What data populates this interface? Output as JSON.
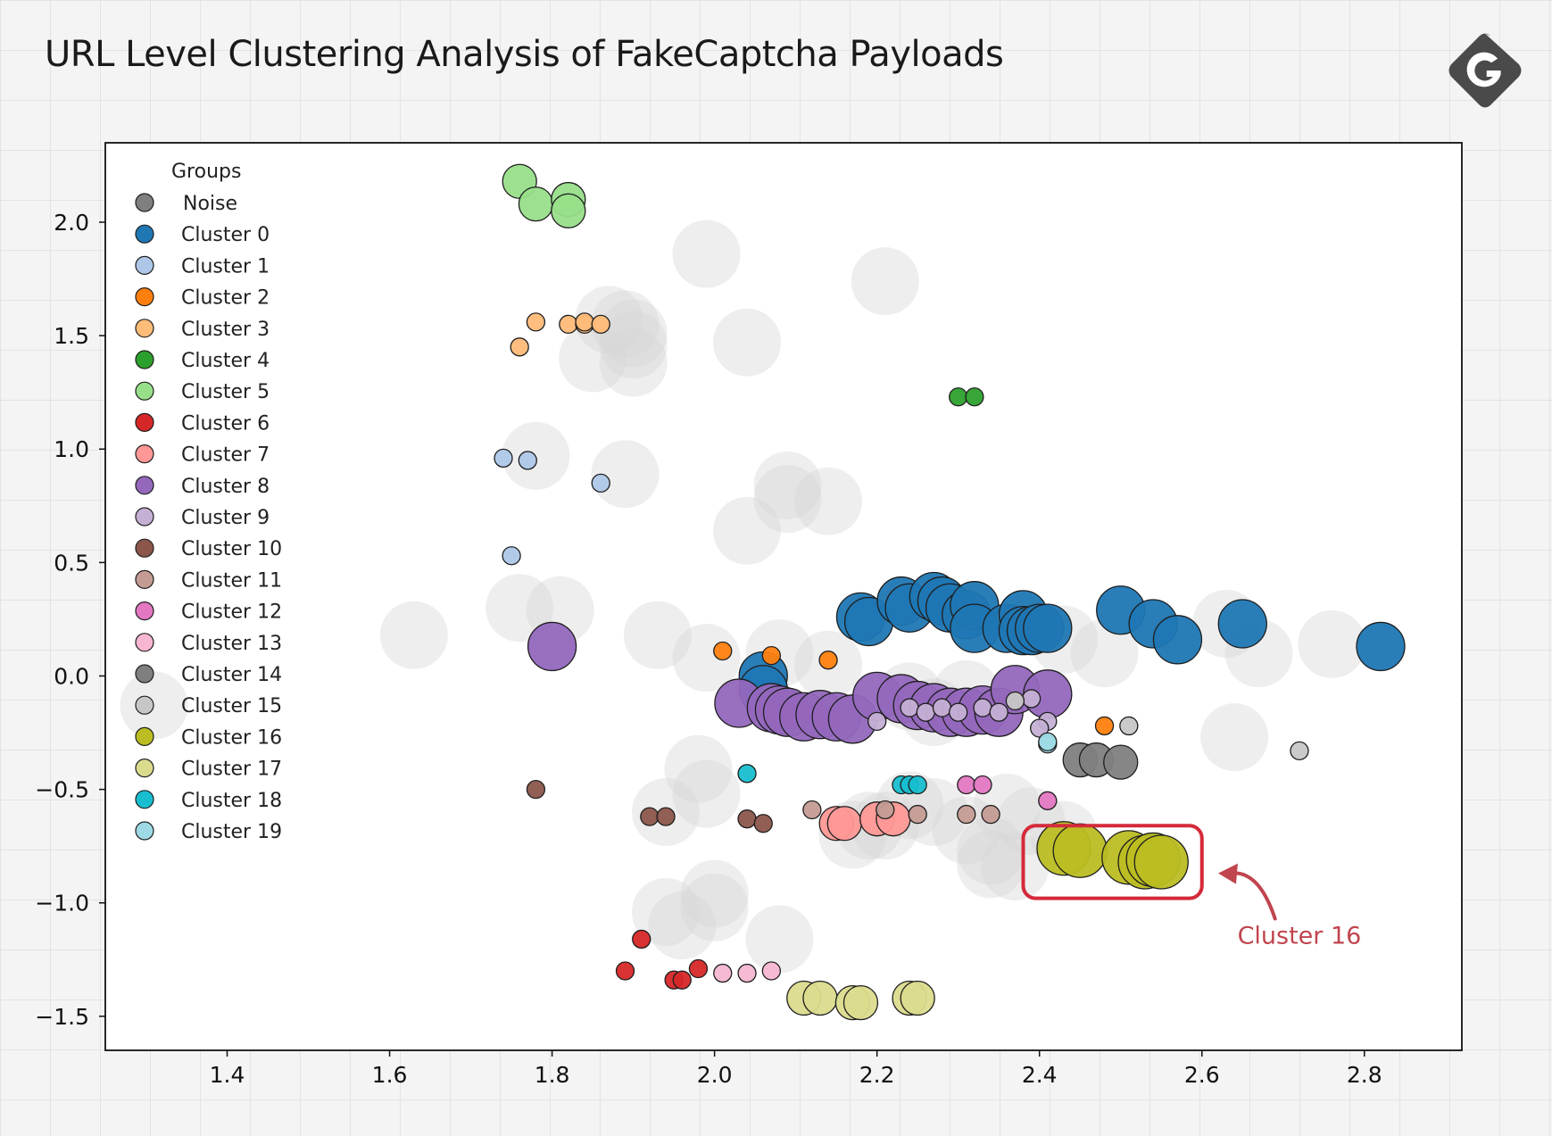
{
  "title": "URL Level Clustering Analysis of FakeCaptcha Payloads",
  "logo": {
    "icon": "g-hexagon-logo-icon",
    "color": "#4a4a4a"
  },
  "chart_data": {
    "type": "scatter",
    "title": "",
    "xlabel": "",
    "ylabel": "",
    "xlim": [
      1.25,
      2.92
    ],
    "ylim": [
      -1.65,
      2.35
    ],
    "x_ticks": [
      {
        "value": 1.4,
        "label": "1.4"
      },
      {
        "value": 1.6,
        "label": "1.6"
      },
      {
        "value": 1.8,
        "label": "1.8"
      },
      {
        "value": 2.0,
        "label": "2.0"
      },
      {
        "value": 2.2,
        "label": "2.2"
      },
      {
        "value": 2.4,
        "label": "2.4"
      },
      {
        "value": 2.6,
        "label": "2.6"
      },
      {
        "value": 2.8,
        "label": "2.8"
      }
    ],
    "y_ticks": [
      {
        "value": 2.0,
        "label": "2.0"
      },
      {
        "value": 1.5,
        "label": "1.5"
      },
      {
        "value": 1.0,
        "label": "1.0"
      },
      {
        "value": 0.5,
        "label": "0.5"
      },
      {
        "value": 0.0,
        "label": "0.0"
      },
      {
        "value": -0.5,
        "label": "−0.5"
      },
      {
        "value": -1.0,
        "label": "−1.0"
      },
      {
        "value": -1.5,
        "label": "−1.5"
      }
    ],
    "grid": false,
    "legend": {
      "title": "Groups",
      "placement": "upper-left"
    },
    "series": [
      {
        "name": "Noise",
        "color": "#d6d6d6",
        "alpha": 0.45,
        "size": "large",
        "points": [
          [
            1.31,
            -0.13
          ],
          [
            1.63,
            0.18
          ],
          [
            1.76,
            0.3
          ],
          [
            1.78,
            0.97
          ],
          [
            1.81,
            0.29
          ],
          [
            1.85,
            1.4
          ],
          [
            1.87,
            1.57
          ],
          [
            1.89,
            1.55
          ],
          [
            1.9,
            1.51
          ],
          [
            1.9,
            1.46
          ],
          [
            1.9,
            1.38
          ],
          [
            1.89,
            0.89
          ],
          [
            1.93,
            0.18
          ],
          [
            1.94,
            -0.6
          ],
          [
            1.94,
            -1.04
          ],
          [
            1.96,
            -1.1
          ],
          [
            1.99,
            0.08
          ],
          [
            1.98,
            -0.41
          ],
          [
            1.99,
            -0.52
          ],
          [
            1.99,
            1.86
          ],
          [
            2.0,
            -0.96
          ],
          [
            2.0,
            -1.02
          ],
          [
            2.04,
            1.47
          ],
          [
            2.04,
            0.64
          ],
          [
            2.08,
            0.1
          ],
          [
            2.09,
            0.84
          ],
          [
            2.09,
            0.78
          ],
          [
            2.08,
            -1.16
          ],
          [
            2.14,
            0.77
          ],
          [
            2.14,
            0.05
          ],
          [
            2.17,
            -0.7
          ],
          [
            2.19,
            -0.66
          ],
          [
            2.21,
            -0.66
          ],
          [
            2.21,
            1.74
          ],
          [
            2.24,
            -0.09
          ],
          [
            2.24,
            -0.57
          ],
          [
            2.27,
            -0.16
          ],
          [
            2.27,
            -0.6
          ],
          [
            2.31,
            -0.08
          ],
          [
            2.31,
            -0.68
          ],
          [
            2.34,
            -0.77
          ],
          [
            2.34,
            -0.83
          ],
          [
            2.36,
            -0.58
          ],
          [
            2.37,
            -0.84
          ],
          [
            2.39,
            -0.64
          ],
          [
            2.43,
            0.16
          ],
          [
            2.43,
            -0.7
          ],
          [
            2.48,
            0.1
          ],
          [
            2.63,
            0.23
          ],
          [
            2.64,
            -0.27
          ],
          [
            2.67,
            0.1
          ],
          [
            2.76,
            0.14
          ]
        ]
      },
      {
        "name": "Cluster 0",
        "color": "#1f77b4",
        "size": "large",
        "points": [
          [
            2.18,
            0.26
          ],
          [
            2.19,
            0.24
          ],
          [
            2.23,
            0.33
          ],
          [
            2.24,
            0.3
          ],
          [
            2.27,
            0.35
          ],
          [
            2.28,
            0.33
          ],
          [
            2.29,
            0.3
          ],
          [
            2.31,
            0.27
          ],
          [
            2.32,
            0.31
          ],
          [
            2.32,
            0.21
          ],
          [
            2.36,
            0.21
          ],
          [
            2.38,
            0.27
          ],
          [
            2.38,
            0.2
          ],
          [
            2.39,
            0.2
          ],
          [
            2.4,
            0.21
          ],
          [
            2.41,
            0.21
          ],
          [
            2.5,
            0.29
          ],
          [
            2.54,
            0.23
          ],
          [
            2.57,
            0.16
          ],
          [
            2.65,
            0.23
          ],
          [
            2.82,
            0.13
          ],
          [
            2.06,
            0.0
          ],
          [
            2.06,
            -0.06
          ]
        ]
      },
      {
        "name": "Cluster 1",
        "color": "#aec7e8",
        "size": "small",
        "points": [
          [
            1.74,
            0.96
          ],
          [
            1.77,
            0.95
          ],
          [
            1.86,
            0.85
          ],
          [
            1.75,
            0.53
          ]
        ]
      },
      {
        "name": "Cluster 2",
        "color": "#ff7f0e",
        "size": "small",
        "points": [
          [
            2.01,
            0.11
          ],
          [
            2.07,
            0.09
          ],
          [
            2.14,
            0.07
          ],
          [
            2.48,
            -0.22
          ]
        ]
      },
      {
        "name": "Cluster 3",
        "color": "#ffbb78",
        "size": "small",
        "points": [
          [
            1.78,
            1.56
          ],
          [
            1.82,
            1.55
          ],
          [
            1.84,
            1.55
          ],
          [
            1.84,
            1.56
          ],
          [
            1.86,
            1.55
          ],
          [
            1.76,
            1.45
          ]
        ]
      },
      {
        "name": "Cluster 4",
        "color": "#2ca02c",
        "size": "small",
        "points": [
          [
            2.3,
            1.23
          ],
          [
            2.32,
            1.23
          ]
        ]
      },
      {
        "name": "Cluster 5",
        "color": "#98df8a",
        "size": "medium",
        "points": [
          [
            1.76,
            2.18
          ],
          [
            1.78,
            2.08
          ],
          [
            1.82,
            2.1
          ],
          [
            1.82,
            2.05
          ]
        ]
      },
      {
        "name": "Cluster 6",
        "color": "#d62728",
        "size": "small",
        "points": [
          [
            1.91,
            -1.16
          ],
          [
            1.89,
            -1.3
          ],
          [
            1.95,
            -1.34
          ],
          [
            1.96,
            -1.34
          ],
          [
            1.98,
            -1.29
          ]
        ]
      },
      {
        "name": "Cluster 7",
        "color": "#ff9896",
        "size": "medium",
        "points": [
          [
            2.15,
            -0.65
          ],
          [
            2.16,
            -0.65
          ],
          [
            2.2,
            -0.63
          ],
          [
            2.22,
            -0.63
          ]
        ]
      },
      {
        "name": "Cluster 8",
        "color": "#9467bd",
        "size": "large",
        "points": [
          [
            1.8,
            0.13
          ],
          [
            2.03,
            -0.12
          ],
          [
            2.07,
            -0.14
          ],
          [
            2.08,
            -0.15
          ],
          [
            2.09,
            -0.16
          ],
          [
            2.11,
            -0.18
          ],
          [
            2.13,
            -0.17
          ],
          [
            2.15,
            -0.18
          ],
          [
            2.17,
            -0.19
          ],
          [
            2.2,
            -0.09
          ],
          [
            2.23,
            -0.1
          ],
          [
            2.25,
            -0.13
          ],
          [
            2.27,
            -0.14
          ],
          [
            2.29,
            -0.16
          ],
          [
            2.31,
            -0.16
          ],
          [
            2.33,
            -0.15
          ],
          [
            2.35,
            -0.16
          ],
          [
            2.37,
            -0.06
          ],
          [
            2.41,
            -0.08
          ]
        ]
      },
      {
        "name": "Cluster 9",
        "color": "#c5b0d5",
        "size": "small",
        "points": [
          [
            2.2,
            -0.2
          ],
          [
            2.24,
            -0.14
          ],
          [
            2.26,
            -0.16
          ],
          [
            2.28,
            -0.14
          ],
          [
            2.3,
            -0.16
          ],
          [
            2.33,
            -0.14
          ],
          [
            2.35,
            -0.16
          ],
          [
            2.39,
            -0.1
          ],
          [
            2.41,
            -0.2
          ],
          [
            2.4,
            -0.23
          ]
        ]
      },
      {
        "name": "Cluster 10",
        "color": "#8c564b",
        "size": "small",
        "points": [
          [
            1.78,
            -0.5
          ],
          [
            1.92,
            -0.62
          ],
          [
            1.94,
            -0.62
          ],
          [
            2.04,
            -0.63
          ],
          [
            2.06,
            -0.65
          ]
        ]
      },
      {
        "name": "Cluster 11",
        "color": "#c49c94",
        "size": "small",
        "points": [
          [
            2.12,
            -0.59
          ],
          [
            2.21,
            -0.59
          ],
          [
            2.25,
            -0.61
          ],
          [
            2.31,
            -0.61
          ],
          [
            2.34,
            -0.61
          ]
        ]
      },
      {
        "name": "Cluster 12",
        "color": "#e377c2",
        "size": "small",
        "points": [
          [
            2.31,
            -0.48
          ],
          [
            2.33,
            -0.48
          ],
          [
            2.41,
            -0.55
          ]
        ]
      },
      {
        "name": "Cluster 13",
        "color": "#f7b6d2",
        "size": "small",
        "points": [
          [
            2.01,
            -1.31
          ],
          [
            2.04,
            -1.31
          ],
          [
            2.07,
            -1.3
          ]
        ]
      },
      {
        "name": "Cluster 14",
        "color": "#7f7f7f",
        "size": "medium",
        "points": [
          [
            2.45,
            -0.37
          ],
          [
            2.47,
            -0.37
          ],
          [
            2.5,
            -0.38
          ]
        ]
      },
      {
        "name": "Cluster 15",
        "color": "#c7c7c7",
        "size": "small",
        "points": [
          [
            2.37,
            -0.11
          ],
          [
            2.51,
            -0.22
          ],
          [
            2.72,
            -0.33
          ]
        ]
      },
      {
        "name": "Cluster 16",
        "color": "#bcbd22",
        "size": "xlarge",
        "points": [
          [
            2.43,
            -0.76
          ],
          [
            2.45,
            -0.77
          ],
          [
            2.51,
            -0.8
          ],
          [
            2.53,
            -0.82
          ],
          [
            2.54,
            -0.81
          ],
          [
            2.55,
            -0.82
          ]
        ]
      },
      {
        "name": "Cluster 17",
        "color": "#dbdb8d",
        "size": "medium",
        "points": [
          [
            2.11,
            -1.42
          ],
          [
            2.13,
            -1.42
          ],
          [
            2.17,
            -1.44
          ],
          [
            2.18,
            -1.44
          ],
          [
            2.24,
            -1.42
          ],
          [
            2.25,
            -1.42
          ]
        ]
      },
      {
        "name": "Cluster 18",
        "color": "#17becf",
        "size": "small",
        "points": [
          [
            2.04,
            -0.43
          ],
          [
            2.23,
            -0.48
          ],
          [
            2.24,
            -0.48
          ],
          [
            2.25,
            -0.48
          ]
        ]
      },
      {
        "name": "Cluster 19",
        "color": "#9edae5",
        "size": "small",
        "points": [
          [
            2.41,
            -0.3
          ],
          [
            2.41,
            -0.29
          ]
        ]
      }
    ],
    "annotation": {
      "label": "Cluster 16",
      "color": "#d42a3a",
      "box_x": [
        2.38,
        2.6
      ],
      "box_y": [
        -0.66,
        -0.98
      ],
      "label_position": [
        2.72,
        -1.18
      ],
      "arrow_from": [
        2.69,
        -1.07
      ],
      "arrow_to": [
        2.62,
        -0.87
      ]
    }
  }
}
